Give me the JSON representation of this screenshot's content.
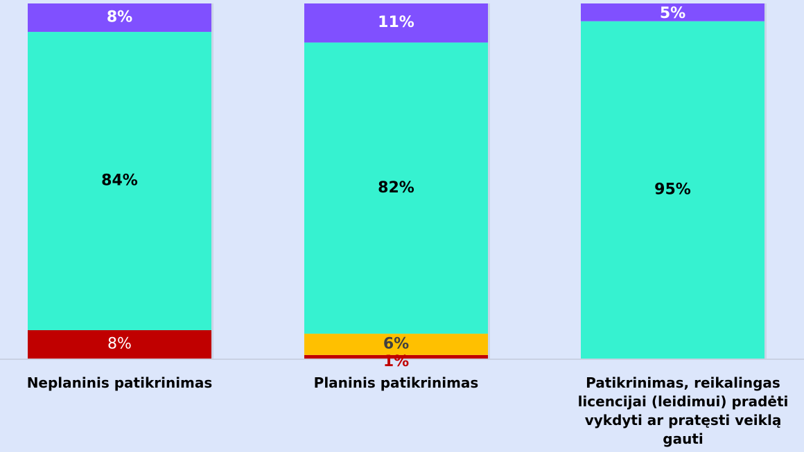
{
  "chart_data": {
    "type": "bar",
    "stacked": true,
    "percent_stacked": true,
    "categories": [
      [
        "Neplaninis patikrinimas"
      ],
      [
        "Planinis patikrinimas"
      ],
      [
        "Patikrinimas, reikalingas",
        "licencijai (leidimui) pradėti",
        "vykdyti ar pratęsti veiklą",
        "gauti"
      ]
    ],
    "series": [
      {
        "values": [
          8,
          1,
          0
        ],
        "labels": [
          "8%",
          "1%",
          ""
        ],
        "color": "#c00000",
        "label_color": "#ffffff",
        "label_bold": false
      },
      {
        "values": [
          0,
          6,
          0
        ],
        "labels": [
          "",
          "6%",
          ""
        ],
        "color": "#ffc000",
        "label_color": "#404040",
        "label_bold": true
      },
      {
        "values": [
          84,
          82,
          95
        ],
        "labels": [
          "84%",
          "82%",
          "95%"
        ],
        "color": "#36f2d0",
        "label_color": "#000000",
        "label_bold": true
      },
      {
        "values": [
          8,
          11,
          5
        ],
        "labels": [
          "8%",
          "11%",
          "5%"
        ],
        "color": "#8050ff",
        "label_color": "#ffffff",
        "label_bold": true
      }
    ],
    "special_label_colors": {
      "1%": "#c00000"
    },
    "ylim": [
      0,
      100
    ],
    "grid": false,
    "legend": "none"
  }
}
